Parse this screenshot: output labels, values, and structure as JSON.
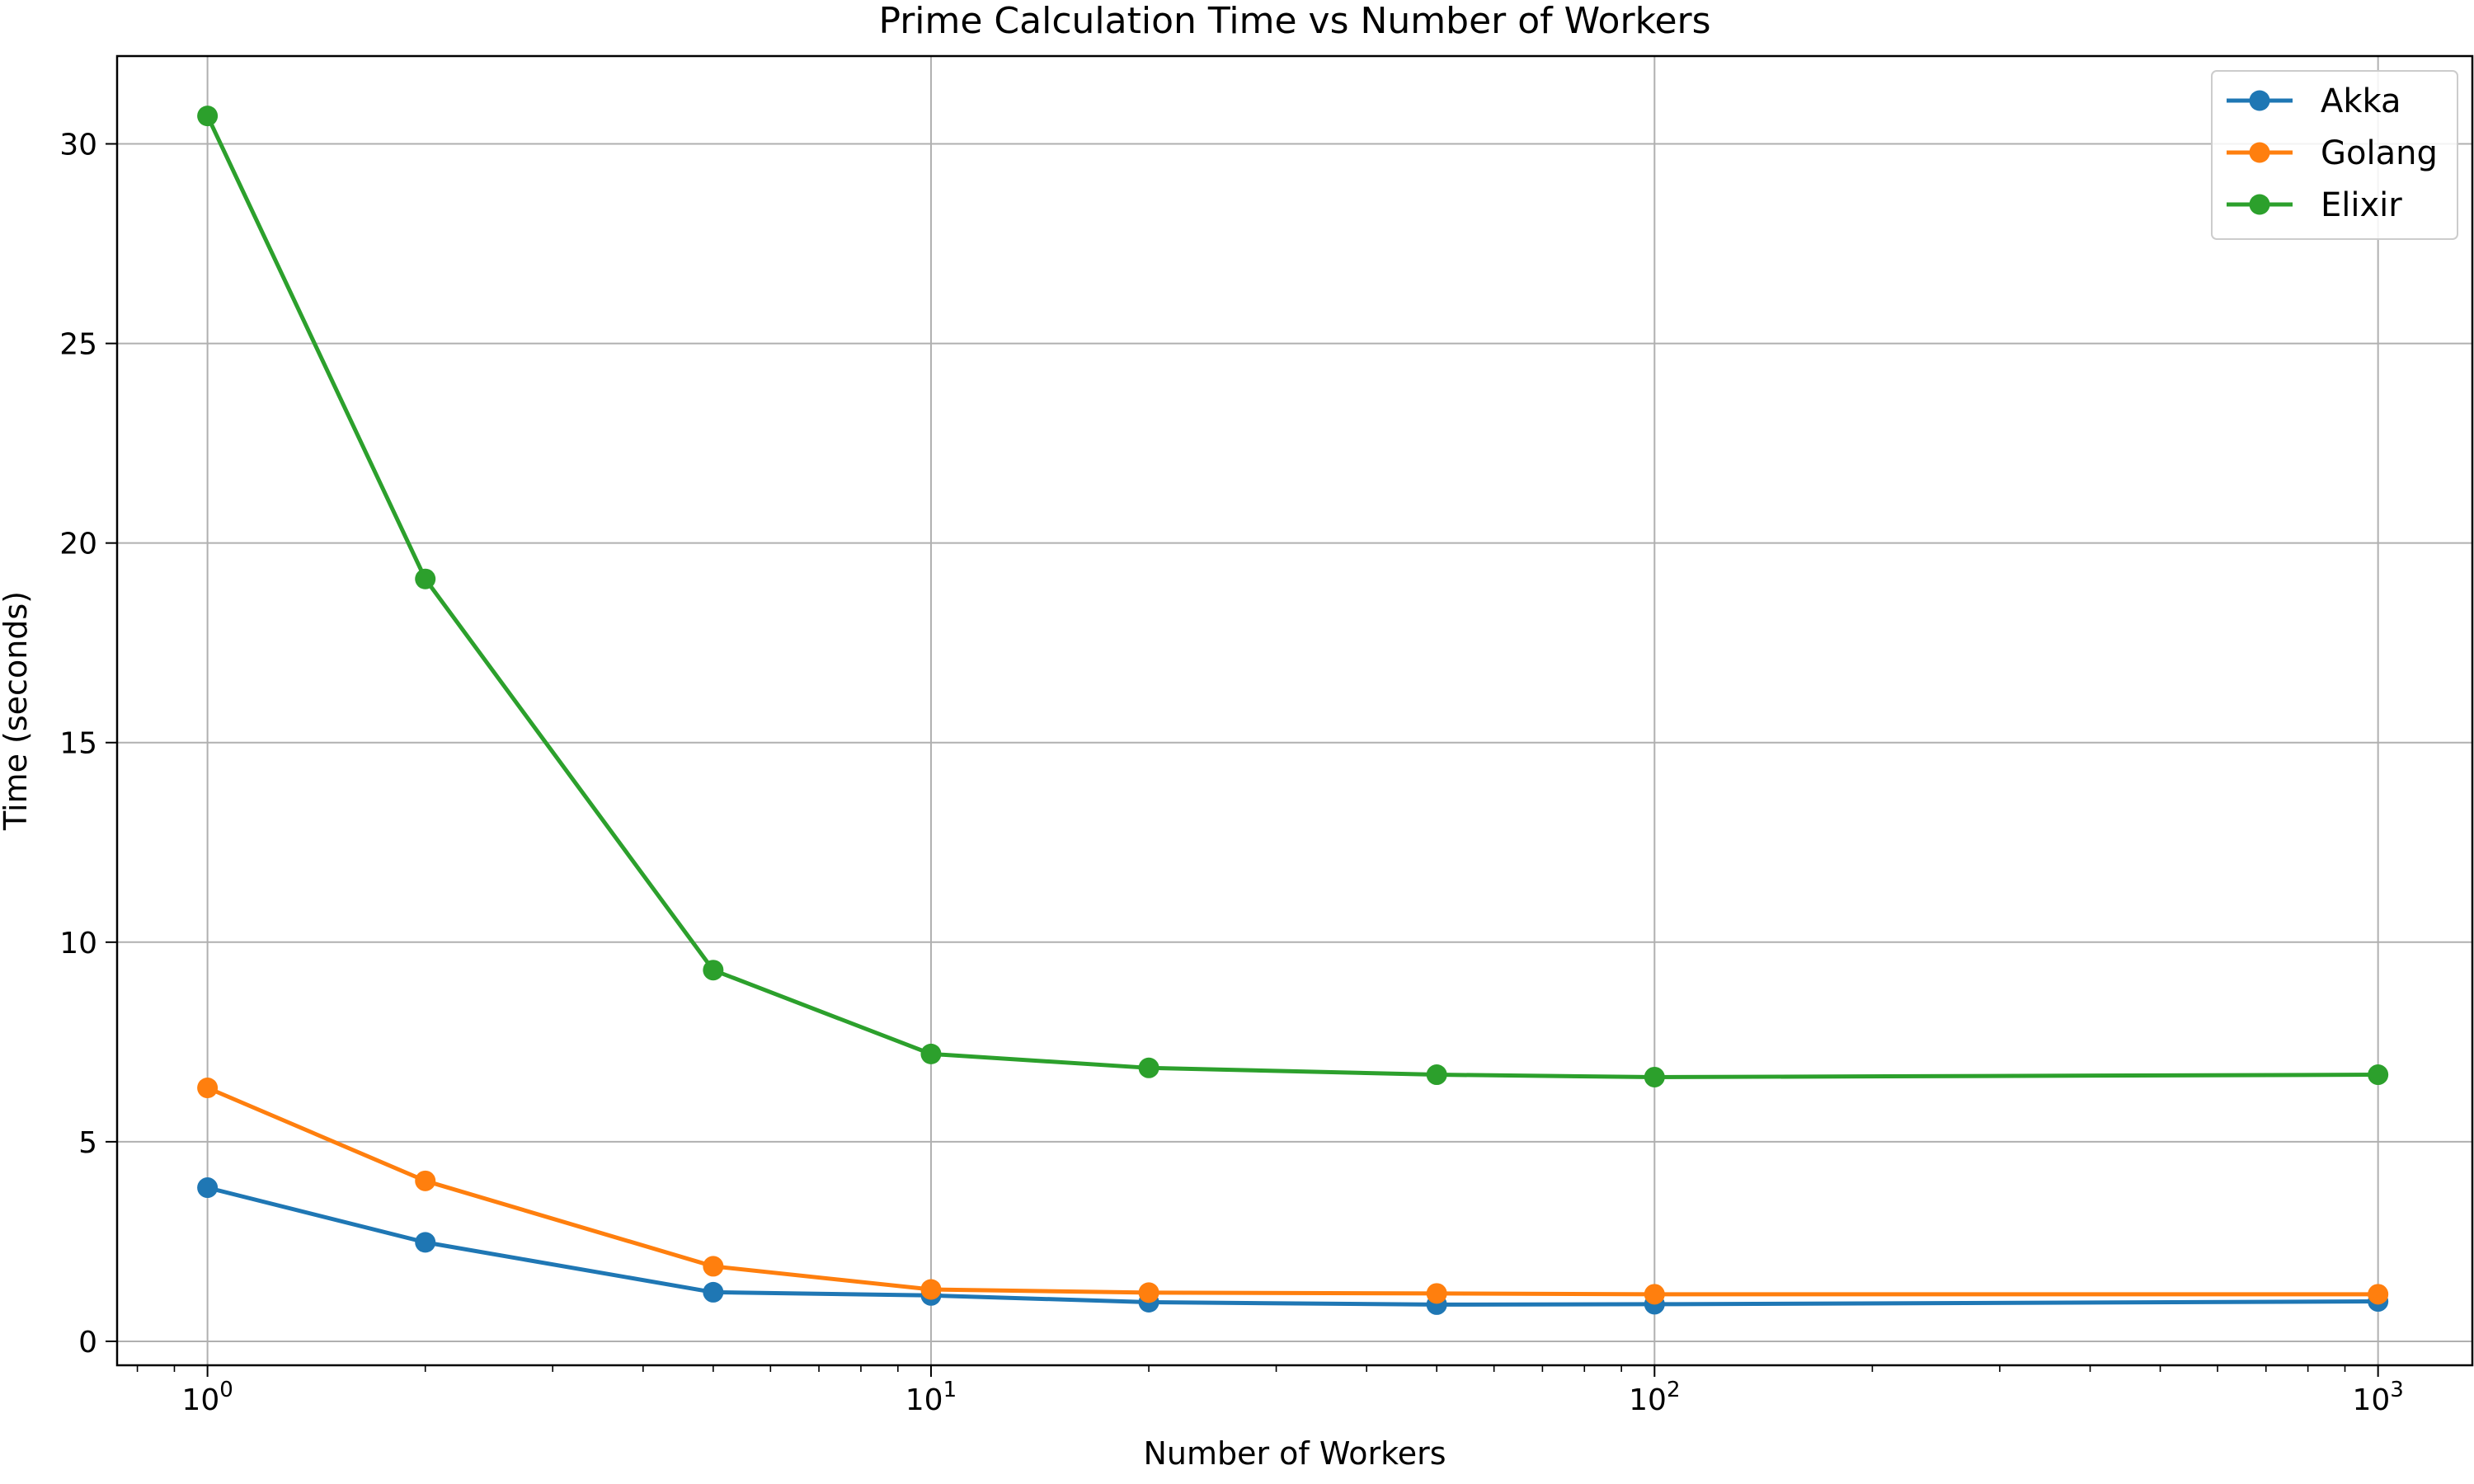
{
  "chart_data": {
    "type": "line",
    "title": "Prime Calculation Time vs Number of Workers",
    "xlabel": "Number of Workers",
    "ylabel": "Time (seconds)",
    "xscale": "log",
    "xlim": [
      0.75,
      1350
    ],
    "ylim": [
      -0.6,
      32.2
    ],
    "grid": true,
    "legend_position": "top-right",
    "x": [
      1,
      2,
      5,
      10,
      20,
      50,
      100,
      1000
    ],
    "x_ticks": [
      {
        "base": "10",
        "exp": "0",
        "value": 1
      },
      {
        "base": "10",
        "exp": "1",
        "value": 10
      },
      {
        "base": "10",
        "exp": "2",
        "value": 100
      },
      {
        "base": "10",
        "exp": "3",
        "value": 1000
      }
    ],
    "y_ticks": [
      {
        "label": "0",
        "value": 0
      },
      {
        "label": "5",
        "value": 5
      },
      {
        "label": "10",
        "value": 10
      },
      {
        "label": "15",
        "value": 15
      },
      {
        "label": "20",
        "value": 20
      },
      {
        "label": "25",
        "value": 25
      },
      {
        "label": "30",
        "value": 30
      }
    ],
    "series": [
      {
        "name": "Akka",
        "color": "#1f77b4",
        "values": [
          3.85,
          2.48,
          1.23,
          1.15,
          0.98,
          0.92,
          0.93,
          1.0
        ]
      },
      {
        "name": "Golang",
        "color": "#ff7f0e",
        "values": [
          6.35,
          4.02,
          1.88,
          1.3,
          1.22,
          1.2,
          1.18,
          1.18
        ]
      },
      {
        "name": "Elixir",
        "color": "#2ca02c",
        "values": [
          30.7,
          19.1,
          9.3,
          7.2,
          6.85,
          6.68,
          6.62,
          6.68
        ]
      }
    ]
  }
}
